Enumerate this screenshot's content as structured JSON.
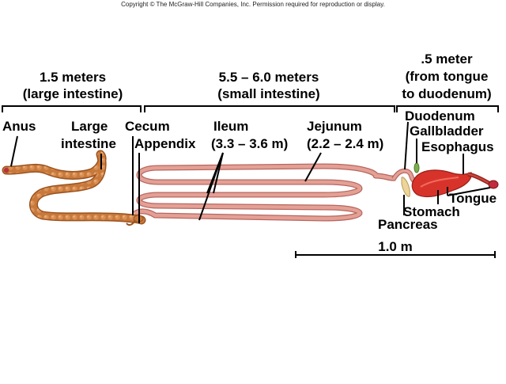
{
  "copyright": "Copyright © The McGraw-Hill Companies, Inc. Permission required for reproduction or display.",
  "sections": {
    "large": {
      "line1": "1.5 meters",
      "line2": "(large intestine)"
    },
    "small": {
      "line1": "5.5 – 6.0 meters",
      "line2": "(small intestine)"
    },
    "upper": {
      "line1": ".5 meter",
      "line2": "(from tongue",
      "line3": "to duodenum)"
    }
  },
  "labels": {
    "anus": "Anus",
    "large_intestine_1": "Large",
    "large_intestine_2": "intestine",
    "cecum": "Cecum",
    "appendix": "Appendix",
    "ileum_1": "Ileum",
    "ileum_2": "(3.3 – 3.6 m)",
    "jejunum_1": "Jejunum",
    "jejunum_2": "(2.2 – 2.4 m)",
    "duodenum": "Duodenum",
    "gallbladder": "Gallbladder",
    "esophagus": "Esophagus",
    "tongue": "Tongue",
    "stomach": "Stomach",
    "pancreas": "Pancreas"
  },
  "scale_bar": {
    "label": "1.0 m"
  },
  "colors": {
    "large_intestine": "#c8783a",
    "small_intestine": "#e4a095",
    "stomach": "#d8332b",
    "pancreas": "#ecd49a",
    "gallbladder": "#7ab04a"
  }
}
